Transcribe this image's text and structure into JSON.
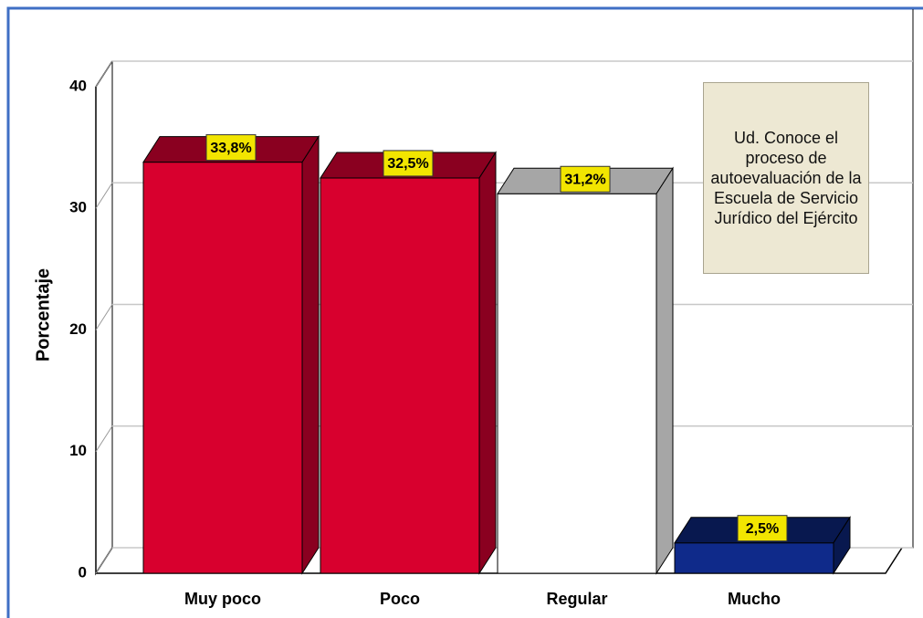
{
  "chart_data": {
    "type": "bar3d",
    "y_label": "Porcentaje",
    "legend_title": "Ud. Conoce el proceso de autoevaluación de la Escuela de Servicio Jurídico del Ejército",
    "categories": [
      "Muy poco",
      "Poco",
      "Regular",
      "Mucho"
    ],
    "values": [
      33.8,
      32.5,
      31.2,
      2.5
    ],
    "value_labels": [
      "33,8%",
      "32,5%",
      "31,2%",
      "2,5%"
    ],
    "colors": [
      "#d8002e",
      "#d8002e",
      "#ffffff",
      "#0f2a8a"
    ],
    "side_colors": [
      "#8a0020",
      "#8a0020",
      "#a6a6a6",
      "#08184f"
    ],
    "ylim": [
      0,
      40
    ],
    "yticks": [
      0,
      10,
      20,
      30,
      40
    ],
    "grid": true
  }
}
